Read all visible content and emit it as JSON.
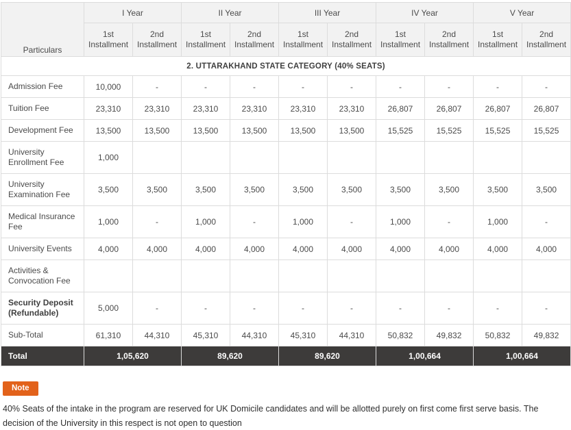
{
  "table": {
    "particulars_header": "Particulars",
    "year_headers": [
      "I Year",
      "II Year",
      "III Year",
      "IV Year",
      "V Year"
    ],
    "installment_labels": [
      "1st Installment",
      "2nd Installment"
    ],
    "category_row": "2. UTTARAKHAND STATE CATEGORY (40% SEATS)",
    "rows": [
      {
        "label": "Admission Fee",
        "bold": false,
        "values": [
          "10,000",
          "-",
          "-",
          "-",
          "-",
          "-",
          "-",
          "-",
          "-",
          "-"
        ]
      },
      {
        "label": "Tuition Fee",
        "bold": false,
        "values": [
          "23,310",
          "23,310",
          "23,310",
          "23,310",
          "23,310",
          "23,310",
          "26,807",
          "26,807",
          "26,807",
          "26,807"
        ]
      },
      {
        "label": "Development Fee",
        "bold": false,
        "values": [
          "13,500",
          "13,500",
          "13,500",
          "13,500",
          "13,500",
          "13,500",
          "15,525",
          "15,525",
          "15,525",
          "15,525"
        ]
      },
      {
        "label": "University Enrollment Fee",
        "bold": false,
        "values": [
          "1,000",
          "",
          "",
          "",
          "",
          "",
          "",
          "",
          "",
          ""
        ]
      },
      {
        "label": "University Examination Fee",
        "bold": false,
        "values": [
          "3,500",
          "3,500",
          "3,500",
          "3,500",
          "3,500",
          "3,500",
          "3,500",
          "3,500",
          "3,500",
          "3,500"
        ]
      },
      {
        "label": "Medical Insurance Fee",
        "bold": false,
        "values": [
          "1,000",
          "-",
          "1,000",
          "-",
          "1,000",
          "-",
          "1,000",
          "-",
          "1,000",
          "-"
        ]
      },
      {
        "label": "University Events",
        "bold": false,
        "values": [
          "4,000",
          "4,000",
          "4,000",
          "4,000",
          "4,000",
          "4,000",
          "4,000",
          "4,000",
          "4,000",
          "4,000"
        ]
      },
      {
        "label": "Activities & Convocation Fee",
        "bold": false,
        "values": [
          "",
          "",
          "",
          "",
          "",
          "",
          "",
          "",
          "",
          ""
        ]
      },
      {
        "label": "Security Deposit (Refundable)",
        "bold": true,
        "values": [
          "5,000",
          "-",
          "-",
          "-",
          "-",
          "-",
          "-",
          "-",
          "-",
          "-"
        ]
      },
      {
        "label": "Sub-Total",
        "bold": false,
        "values": [
          "61,310",
          "44,310",
          "45,310",
          "44,310",
          "45,310",
          "44,310",
          "50,832",
          "49,832",
          "50,832",
          "49,832"
        ]
      }
    ],
    "total_row": {
      "label": "Total",
      "values": [
        "1,05,620",
        "89,620",
        "89,620",
        "1,00,664",
        "1,00,664"
      ]
    }
  },
  "note": {
    "badge_label": "Note",
    "text": "40% Seats of the intake in the program are reserved for UK Domicile candidates and will be allotted purely on first come first serve basis. The decision of the University in this respect is not open to question"
  },
  "colors": {
    "header_bg": "#f2f2f2",
    "border": "#dcdcdc",
    "total_row_bg": "#3d3b3a",
    "accent_orange": "#e2621b",
    "text": "#4a4a4a"
  }
}
